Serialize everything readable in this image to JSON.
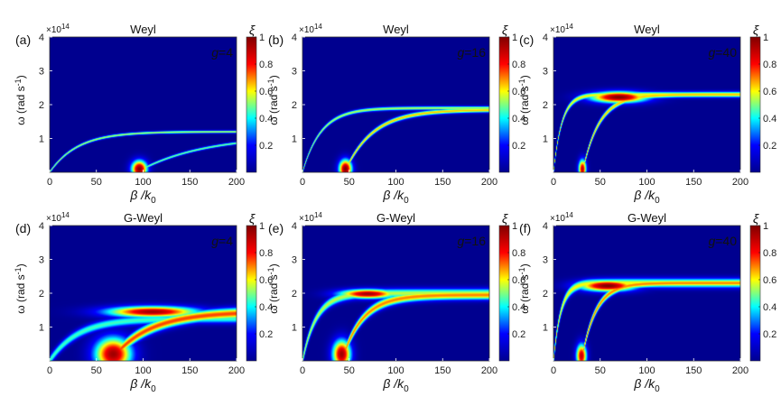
{
  "chart_data": [
    {
      "type": "heatmap",
      "panel_label": "(a)",
      "title": "Weyl",
      "annotation_prefix": "g",
      "annotation_value": "=4",
      "xlabel": "β /k",
      "xlabel_sub": "0",
      "ylabel": "ω (rad s",
      "ylabel_sup": "-1",
      "ylabel_close": ")",
      "y_exponent": "×10",
      "y_exponent_power": "14",
      "colorbar_label": "ξ",
      "xlim": [
        0,
        200
      ],
      "ylim": [
        0,
        4
      ],
      "x_ticks": [
        "0",
        "50",
        "100",
        "150",
        "200"
      ],
      "y_ticks": [
        "1",
        "2",
        "3",
        "4"
      ],
      "colorbar_ticks": [
        "0.2",
        "0.4",
        "0.6",
        "0.8",
        "1"
      ],
      "colorbar_range": [
        0,
        1
      ],
      "bands": [
        {
          "asymptote": 1.2,
          "x_start": 0,
          "curvature": 30,
          "width": 0.03,
          "intensity": 0.55
        },
        {
          "asymptote": 1.1,
          "x_start": 93,
          "curvature": 70,
          "width": 0.03,
          "intensity": 0.5
        }
      ],
      "hotspots": [
        {
          "x": 96,
          "y": 0.1,
          "rx": 6,
          "ry": 0.18,
          "value": 1.0
        }
      ]
    },
    {
      "type": "heatmap",
      "panel_label": "(b)",
      "title": "Weyl",
      "annotation_prefix": "g",
      "annotation_value": "=16",
      "xlabel": "β /k",
      "xlabel_sub": "0",
      "ylabel": "ω (rad s",
      "ylabel_sup": "-1",
      "ylabel_close": ")",
      "y_exponent": "×10",
      "y_exponent_power": "14",
      "colorbar_label": "ξ",
      "xlim": [
        0,
        200
      ],
      "ylim": [
        0,
        4
      ],
      "x_ticks": [
        "0",
        "50",
        "100",
        "150",
        "200"
      ],
      "y_ticks": [
        "1",
        "2",
        "3",
        "4"
      ],
      "colorbar_ticks": [
        "0.2",
        "0.4",
        "0.6",
        "0.8",
        "1"
      ],
      "colorbar_range": [
        0,
        1
      ],
      "bands": [
        {
          "asymptote": 1.9,
          "x_start": 0,
          "curvature": 20,
          "width": 0.04,
          "intensity": 0.55
        },
        {
          "asymptote": 1.85,
          "x_start": 45,
          "curvature": 30,
          "width": 0.05,
          "intensity": 0.65
        }
      ],
      "hotspots": [
        {
          "x": 46,
          "y": 0.1,
          "rx": 5,
          "ry": 0.2,
          "value": 1.0
        }
      ]
    },
    {
      "type": "heatmap",
      "panel_label": "(c)",
      "title": "Weyl",
      "annotation_prefix": "g",
      "annotation_value": "=40",
      "xlabel": "β /k",
      "xlabel_sub": "0",
      "ylabel": "ω (rad s",
      "ylabel_sup": "-1",
      "ylabel_close": ")",
      "y_exponent": "×10",
      "y_exponent_power": "14",
      "colorbar_label": "ξ",
      "xlim": [
        0,
        200
      ],
      "ylim": [
        0,
        4
      ],
      "x_ticks": [
        "0",
        "50",
        "100",
        "150",
        "200"
      ],
      "y_ticks": [
        "1",
        "2",
        "3",
        "4"
      ],
      "colorbar_ticks": [
        "0.2",
        "0.4",
        "0.6",
        "0.8",
        "1"
      ],
      "colorbar_range": [
        0,
        1
      ],
      "bands": [
        {
          "asymptote": 2.3,
          "x_start": 0,
          "curvature": 9,
          "width": 0.06,
          "intensity": 0.6
        },
        {
          "asymptote": 2.3,
          "x_start": 31,
          "curvature": 18,
          "width": 0.06,
          "intensity": 0.65
        }
      ],
      "hotspots": [
        {
          "x": 70,
          "y": 2.22,
          "rx": 22,
          "ry": 0.12,
          "value": 1.0
        },
        {
          "x": 31,
          "y": 0.1,
          "rx": 3,
          "ry": 0.2,
          "value": 0.9
        }
      ]
    },
    {
      "type": "heatmap",
      "panel_label": "(d)",
      "title": "G-Weyl",
      "annotation_prefix": "g",
      "annotation_value": "=4",
      "xlabel": "β /k",
      "xlabel_sub": "0",
      "ylabel": "ω (rad s",
      "ylabel_sup": "-1",
      "ylabel_close": ")",
      "y_exponent": "×10",
      "y_exponent_power": "14",
      "colorbar_label": "ξ",
      "xlim": [
        0,
        200
      ],
      "ylim": [
        0,
        4
      ],
      "x_ticks": [
        "0",
        "50",
        "100",
        "150",
        "200"
      ],
      "y_ticks": [
        "1",
        "2",
        "3",
        "4"
      ],
      "colorbar_ticks": [
        "0.2",
        "0.4",
        "0.6",
        "0.8",
        "1"
      ],
      "colorbar_range": [
        0,
        1
      ],
      "bands": [
        {
          "asymptote": 1.25,
          "x_start": 0,
          "curvature": 30,
          "width": 0.1,
          "intensity": 0.45
        },
        {
          "asymptote": 1.45,
          "x_start": 65,
          "curvature": 40,
          "width": 0.12,
          "intensity": 0.75
        }
      ],
      "hotspots": [
        {
          "x": 110,
          "y": 1.45,
          "rx": 35,
          "ry": 0.12,
          "value": 0.95
        },
        {
          "x": 68,
          "y": 0.2,
          "rx": 14,
          "ry": 0.35,
          "value": 0.95
        }
      ]
    },
    {
      "type": "heatmap",
      "panel_label": "(e)",
      "title": "G-Weyl",
      "annotation_prefix": "g",
      "annotation_value": "=16",
      "xlabel": "β /k",
      "xlabel_sub": "0",
      "ylabel": "ω (rad s",
      "ylabel_sup": "-1",
      "ylabel_close": ")",
      "y_exponent": "×10",
      "y_exponent_power": "14",
      "colorbar_label": "ξ",
      "xlim": [
        0,
        200
      ],
      "ylim": [
        0,
        4
      ],
      "x_ticks": [
        "0",
        "50",
        "100",
        "150",
        "200"
      ],
      "y_ticks": [
        "1",
        "2",
        "3",
        "4"
      ],
      "colorbar_ticks": [
        "0.2",
        "0.4",
        "0.6",
        "0.8",
        "1"
      ],
      "colorbar_range": [
        0,
        1
      ],
      "bands": [
        {
          "asymptote": 2.0,
          "x_start": 0,
          "curvature": 15,
          "width": 0.1,
          "intensity": 0.55
        },
        {
          "asymptote": 1.95,
          "x_start": 42,
          "curvature": 22,
          "width": 0.1,
          "intensity": 0.7
        }
      ],
      "hotspots": [
        {
          "x": 70,
          "y": 1.98,
          "rx": 22,
          "ry": 0.1,
          "value": 0.95
        },
        {
          "x": 42,
          "y": 0.2,
          "rx": 7,
          "ry": 0.3,
          "value": 0.95
        }
      ]
    },
    {
      "type": "heatmap",
      "panel_label": "(f)",
      "title": "G-Weyl",
      "annotation_prefix": "g",
      "annotation_value": "=40",
      "xlabel": "β /k",
      "xlabel_sub": "0",
      "ylabel": "ω (rad s",
      "ylabel_sup": "-1",
      "ylabel_close": ")",
      "y_exponent": "×10",
      "y_exponent_power": "14",
      "colorbar_label": "ξ",
      "xlim": [
        0,
        200
      ],
      "ylim": [
        0,
        4
      ],
      "x_ticks": [
        "0",
        "50",
        "100",
        "150",
        "200"
      ],
      "y_ticks": [
        "1",
        "2",
        "3",
        "4"
      ],
      "colorbar_ticks": [
        "0.2",
        "0.4",
        "0.6",
        "0.8",
        "1"
      ],
      "colorbar_range": [
        0,
        1
      ],
      "bands": [
        {
          "asymptote": 2.3,
          "x_start": 0,
          "curvature": 8,
          "width": 0.1,
          "intensity": 0.6
        },
        {
          "asymptote": 2.3,
          "x_start": 30,
          "curvature": 15,
          "width": 0.08,
          "intensity": 0.7
        }
      ],
      "hotspots": [
        {
          "x": 58,
          "y": 2.22,
          "rx": 22,
          "ry": 0.12,
          "value": 1.0
        },
        {
          "x": 30,
          "y": 0.15,
          "rx": 4,
          "ry": 0.25,
          "value": 0.9
        }
      ]
    }
  ],
  "colors": {
    "colormap": [
      "#00008f",
      "#0000ff",
      "#00ffff",
      "#ffff00",
      "#ff0000",
      "#800000"
    ],
    "background": "#ffffff",
    "text": "#111111",
    "axis": "#333333"
  }
}
